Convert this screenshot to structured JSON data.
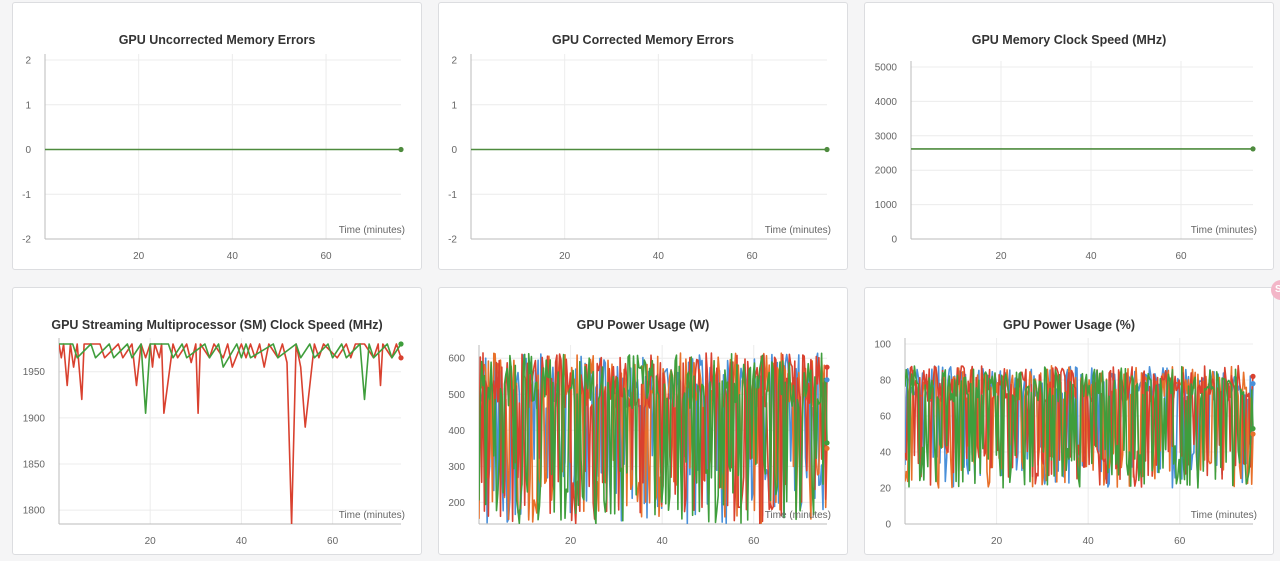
{
  "chart_data": [
    {
      "type": "line",
      "title": "GPU Uncorrected Memory Errors",
      "xlabel": "Time (minutes)",
      "xlim": [
        0,
        76
      ],
      "ylim": [
        -2,
        2
      ],
      "yticks": [
        2,
        1,
        0,
        -1,
        -2
      ],
      "xticks": [
        20,
        40,
        60
      ],
      "grid": true,
      "series": [
        {
          "color": "#4e8b3e",
          "x": [
            0,
            76
          ],
          "values": [
            0,
            0
          ]
        }
      ]
    },
    {
      "type": "line",
      "title": "GPU Corrected Memory Errors",
      "xlabel": "Time (minutes)",
      "xlim": [
        0,
        76
      ],
      "ylim": [
        -2,
        2
      ],
      "yticks": [
        2,
        1,
        0,
        -1,
        -2
      ],
      "xticks": [
        20,
        40,
        60
      ],
      "grid": true,
      "series": [
        {
          "color": "#4e8b3e",
          "x": [
            0,
            76
          ],
          "values": [
            0,
            0
          ]
        }
      ]
    },
    {
      "type": "line",
      "title": "GPU Memory Clock Speed (MHz)",
      "xlabel": "Time (minutes)",
      "xlim": [
        0,
        76
      ],
      "ylim": [
        0,
        5000
      ],
      "yticks": [
        5000,
        4000,
        3000,
        2000,
        1000,
        0
      ],
      "xticks": [
        20,
        40,
        60
      ],
      "grid": true,
      "series": [
        {
          "color": "#4e8b3e",
          "x": [
            0,
            76
          ],
          "values": [
            2619,
            2619
          ]
        }
      ]
    },
    {
      "type": "line",
      "title": "GPU Streaming Multiprocessor (SM) Clock Speed (MHz)",
      "xlabel": "Time (minutes)",
      "xlim": [
        0,
        75
      ],
      "ylim": [
        1785,
        1980
      ],
      "yticks": [
        1950,
        1900,
        1850,
        1800
      ],
      "xticks": [
        20,
        40,
        60
      ],
      "grid": true,
      "series": [
        {
          "color": "#d9412f",
          "x": [
            0,
            0.5,
            1,
            1.8,
            2.5,
            3.2,
            4,
            5,
            5.5,
            6,
            9,
            10,
            13,
            14,
            16,
            17,
            18,
            19,
            20,
            20.5,
            21,
            22,
            22.5,
            23,
            25,
            26,
            28,
            29,
            30,
            30.5,
            31,
            33,
            34,
            36,
            37,
            38,
            40,
            41,
            42,
            43,
            44,
            45,
            46,
            48,
            49,
            50,
            51,
            52,
            53,
            54,
            56,
            57,
            58,
            61,
            63,
            64,
            65,
            67,
            69,
            70,
            70.5,
            71,
            73,
            74,
            75
          ],
          "values": [
            1980,
            1965,
            1980,
            1935,
            1980,
            1955,
            1980,
            1920,
            1980,
            1980,
            1980,
            1965,
            1980,
            1965,
            1980,
            1935,
            1980,
            1965,
            1980,
            1955,
            1980,
            1965,
            1980,
            1905,
            1980,
            1965,
            1980,
            1960,
            1980,
            1905,
            1980,
            1965,
            1980,
            1965,
            1980,
            1955,
            1980,
            1965,
            1980,
            1965,
            1980,
            1955,
            1980,
            1965,
            1980,
            1960,
            1785,
            1980,
            1955,
            1890,
            1980,
            1965,
            1980,
            1965,
            1980,
            1965,
            1980,
            1980,
            1965,
            1980,
            1935,
            1980,
            1965,
            1980,
            1965
          ]
        },
        {
          "color": "#3f9e3c",
          "x": [
            0,
            3,
            4,
            7,
            8,
            11,
            12,
            15,
            16,
            18,
            19,
            20,
            24,
            25,
            27,
            28,
            32,
            33,
            35,
            36,
            39,
            40,
            41,
            42,
            47,
            48,
            52,
            53,
            55,
            56,
            59,
            60,
            62,
            63,
            66,
            67,
            68,
            69,
            72,
            73,
            75
          ],
          "values": [
            1980,
            1980,
            1965,
            1980,
            1965,
            1980,
            1965,
            1980,
            1965,
            1980,
            1905,
            1980,
            1980,
            1965,
            1980,
            1965,
            1980,
            1965,
            1980,
            1955,
            1980,
            1965,
            1980,
            1965,
            1980,
            1965,
            1980,
            1965,
            1980,
            1965,
            1980,
            1965,
            1980,
            1965,
            1980,
            1920,
            1980,
            1965,
            1980,
            1965,
            1980
          ]
        }
      ]
    },
    {
      "type": "line",
      "title": "GPU Power Usage (W)",
      "xlabel": "Time (minutes)",
      "xlim": [
        0,
        76
      ],
      "ylim": [
        140,
        620
      ],
      "yticks": [
        600,
        500,
        400,
        300,
        200
      ],
      "xticks": [
        20,
        40,
        60
      ],
      "grid": true,
      "series": [
        {
          "color": "#4a90d9",
          "x": [
            0,
            76
          ],
          "values": [
            520,
            540
          ]
        },
        {
          "color": "#e8702a",
          "x": [
            0,
            76
          ],
          "values": [
            500,
            350
          ]
        },
        {
          "color": "#d9412f",
          "x": [
            0,
            76
          ],
          "values": [
            540,
            575
          ]
        },
        {
          "color": "#3f9e3c",
          "x": [
            0,
            76
          ],
          "values": [
            520,
            365
          ]
        }
      ]
    },
    {
      "type": "line",
      "title": "GPU Power Usage (%)",
      "xlabel": "Time (minutes)",
      "xlim": [
        0,
        76
      ],
      "ylim": [
        0,
        100
      ],
      "yticks": [
        100,
        80,
        60,
        40,
        20,
        0
      ],
      "xticks": [
        20,
        40,
        60
      ],
      "grid": true,
      "series": [
        {
          "color": "#4a90d9",
          "x": [
            0,
            76
          ],
          "values": [
            75,
            78
          ]
        },
        {
          "color": "#e8702a",
          "x": [
            0,
            76
          ],
          "values": [
            70,
            50
          ]
        },
        {
          "color": "#d9412f",
          "x": [
            0,
            76
          ],
          "values": [
            78,
            82
          ]
        },
        {
          "color": "#3f9e3c",
          "x": [
            0,
            76
          ],
          "values": [
            75,
            53
          ]
        }
      ]
    }
  ]
}
